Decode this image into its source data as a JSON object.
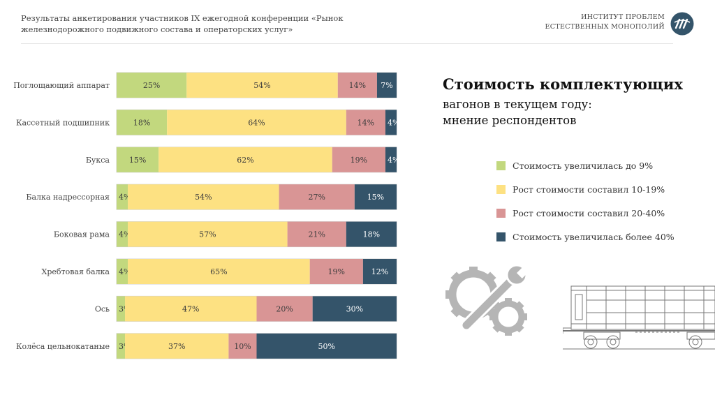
{
  "header": {
    "survey_text": "Результаты анкетирования участников IX ежегодной конференции «Рынок железнодорожного подвижного состава и операторских услуг»",
    "institute_line1": "ИНСТИТУТ ПРОБЛЕМ",
    "institute_line2": "ЕСТЕСТВЕННЫХ МОНОПОЛИЙ"
  },
  "title": "Стоимость комплектующих",
  "subtitle_line1": "вагонов в текущем году:",
  "subtitle_line2": "мнение респондентов",
  "colors": {
    "series": [
      "#c2d87e",
      "#fde182",
      "#d99595",
      "#34546a"
    ],
    "gray_icon": "#b5b5b5"
  },
  "chart_data": {
    "type": "bar",
    "orientation": "horizontal",
    "stacked": true,
    "normalized_100": true,
    "categories": [
      "Поглощающий аппарат",
      "Кассетный подшипник",
      "Букса",
      "Балка надрессорная",
      "Боковая рама",
      "Хребтовая балка",
      "Ось",
      "Колёса цельнокатаные"
    ],
    "series": [
      {
        "name": "Стоимость увеличилась до 9%",
        "values": [
          25,
          18,
          15,
          4,
          4,
          4,
          3,
          3
        ]
      },
      {
        "name": "Рост стоимости составил 10-19%",
        "values": [
          54,
          64,
          62,
          54,
          57,
          65,
          47,
          37
        ]
      },
      {
        "name": "Рост стоимости составил 20-40%",
        "values": [
          14,
          14,
          19,
          27,
          21,
          19,
          20,
          10
        ]
      },
      {
        "name": "Стоимость увеличилась более 40%",
        "values": [
          7,
          4,
          4,
          15,
          18,
          12,
          30,
          50
        ]
      }
    ],
    "value_format": "{v}%",
    "xlim": [
      0,
      100
    ],
    "legend_position": "right",
    "grid": false
  }
}
